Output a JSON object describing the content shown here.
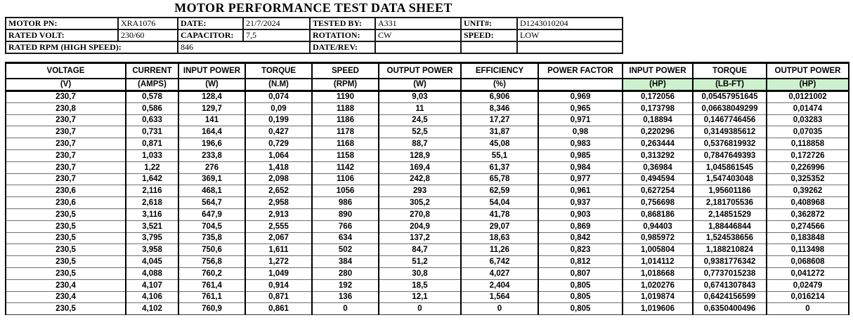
{
  "title": "MOTOR PERFORMANCE TEST DATA SHEET",
  "info_table": {
    "row1": [
      {
        "label": "MOTOR PN:",
        "value": "XRA1076"
      },
      {
        "label": "DATE:",
        "value": "21/7/2024"
      },
      {
        "label": "TESTED BY:",
        "value": "A331"
      },
      {
        "label": "UNIT#:",
        "value": "D1243010204"
      }
    ],
    "row2": [
      {
        "label": "RATED VOLT:",
        "value": "230/60"
      },
      {
        "label": "CAPACITOR:",
        "value": "7,5"
      },
      {
        "label": "ROTATION:",
        "value": "CW"
      },
      {
        "label": "SPEED:",
        "value": "LOW"
      }
    ],
    "row3": {
      "label": "RATED RPM (HIGH SPEED):",
      "value": "846",
      "label2": "DATE/REV:",
      "value2": ""
    }
  },
  "data_table": {
    "headers": [
      "VOLTAGE",
      "CURRENT",
      "INPUT POWER",
      "TORQUE",
      "SPEED",
      "OUTPUT POWER",
      "EFFICIENCY",
      "POWER FACTOR",
      "INPUT POWER",
      "TORQUE",
      "OUTPUT POWER"
    ],
    "units": [
      "(V)",
      "(AMPS)",
      "(W)",
      "(N.M)",
      "(RPM)",
      "(W)",
      "(%)",
      "",
      "(HP)",
      "(LB-FT)",
      "(HP)"
    ],
    "highlight_columns": [
      8,
      9,
      10
    ],
    "unit_highlight_color": "#cdf1cd",
    "rows": [
      [
        "230,7",
        "0,578",
        "128,4",
        "0,074",
        "1190",
        "9,03",
        "6,906",
        "0,969",
        "0,172056",
        "0,05457951645",
        "0,0121002"
      ],
      [
        "230,8",
        "0,586",
        "129,7",
        "0,09",
        "1188",
        "11",
        "8,346",
        "0,965",
        "0,173798",
        "0,06638049299",
        "0,01474"
      ],
      [
        "230,7",
        "0,633",
        "141",
        "0,199",
        "1186",
        "24,5",
        "17,27",
        "0,971",
        "0,18894",
        "0,1467746456",
        "0,03283"
      ],
      [
        "230,7",
        "0,731",
        "164,4",
        "0,427",
        "1178",
        "52,5",
        "31,87",
        "0,98",
        "0,220296",
        "0,3149385612",
        "0,07035"
      ],
      [
        "230,7",
        "0,871",
        "196,6",
        "0,729",
        "1168",
        "88,7",
        "45,08",
        "0,983",
        "0,263444",
        "0,5376819932",
        "0,118858"
      ],
      [
        "230,7",
        "1,033",
        "233,8",
        "1,064",
        "1158",
        "128,9",
        "55,1",
        "0,985",
        "0,313292",
        "0,7847649393",
        "0,172726"
      ],
      [
        "230,7",
        "1,22",
        "276",
        "1,418",
        "1142",
        "169,4",
        "61,37",
        "0,984",
        "0,36984",
        "1,045861545",
        "0,226996"
      ],
      [
        "230,7",
        "1,642",
        "369,1",
        "2,098",
        "1106",
        "242,8",
        "65,78",
        "0,977",
        "0,494594",
        "1,547403048",
        "0,325352"
      ],
      [
        "230,6",
        "2,116",
        "468,1",
        "2,652",
        "1056",
        "293",
        "62,59",
        "0,961",
        "0,627254",
        "1,95601186",
        "0,39262"
      ],
      [
        "230,6",
        "2,618",
        "564,7",
        "2,958",
        "986",
        "305,2",
        "54,04",
        "0,937",
        "0,756698",
        "2,181705536",
        "0,408968"
      ],
      [
        "230,5",
        "3,116",
        "647,9",
        "2,913",
        "890",
        "270,8",
        "41,78",
        "0,903",
        "0,868186",
        "2,14851529",
        "0,362872"
      ],
      [
        "230,5",
        "3,521",
        "704,5",
        "2,555",
        "766",
        "204,9",
        "29,07",
        "0,869",
        "0,94403",
        "1,88446844",
        "0,274566"
      ],
      [
        "230,5",
        "3,795",
        "735,8",
        "2,067",
        "634",
        "137,2",
        "18,63",
        "0,842",
        "0,985972",
        "1,524538656",
        "0,183848"
      ],
      [
        "230,5",
        "3,958",
        "750,6",
        "1,611",
        "502",
        "84,7",
        "11,26",
        "0,823",
        "1,005804",
        "1,188210824",
        "0,113498"
      ],
      [
        "230,5",
        "4,045",
        "756,8",
        "1,272",
        "384",
        "51,2",
        "6,742",
        "0,812",
        "1,014112",
        "0,9381776342",
        "0,068608"
      ],
      [
        "230,5",
        "4,088",
        "760,2",
        "1,049",
        "280",
        "30,8",
        "4,027",
        "0,807",
        "1,018668",
        "0,7737015238",
        "0,041272"
      ],
      [
        "230,4",
        "4,107",
        "761,4",
        "0,914",
        "192",
        "18,5",
        "2,404",
        "0,805",
        "1,020276",
        "0,6741307843",
        "0,02479"
      ],
      [
        "230,4",
        "4,106",
        "761,1",
        "0,871",
        "136",
        "12,1",
        "1,564",
        "0,805",
        "1,019874",
        "0,6424156599",
        "0,016214"
      ],
      [
        "230,5",
        "4,102",
        "760,9",
        "0,861",
        "0",
        "0",
        "0",
        "0,805",
        "1,019606",
        "0,6350400496",
        "0"
      ]
    ]
  }
}
